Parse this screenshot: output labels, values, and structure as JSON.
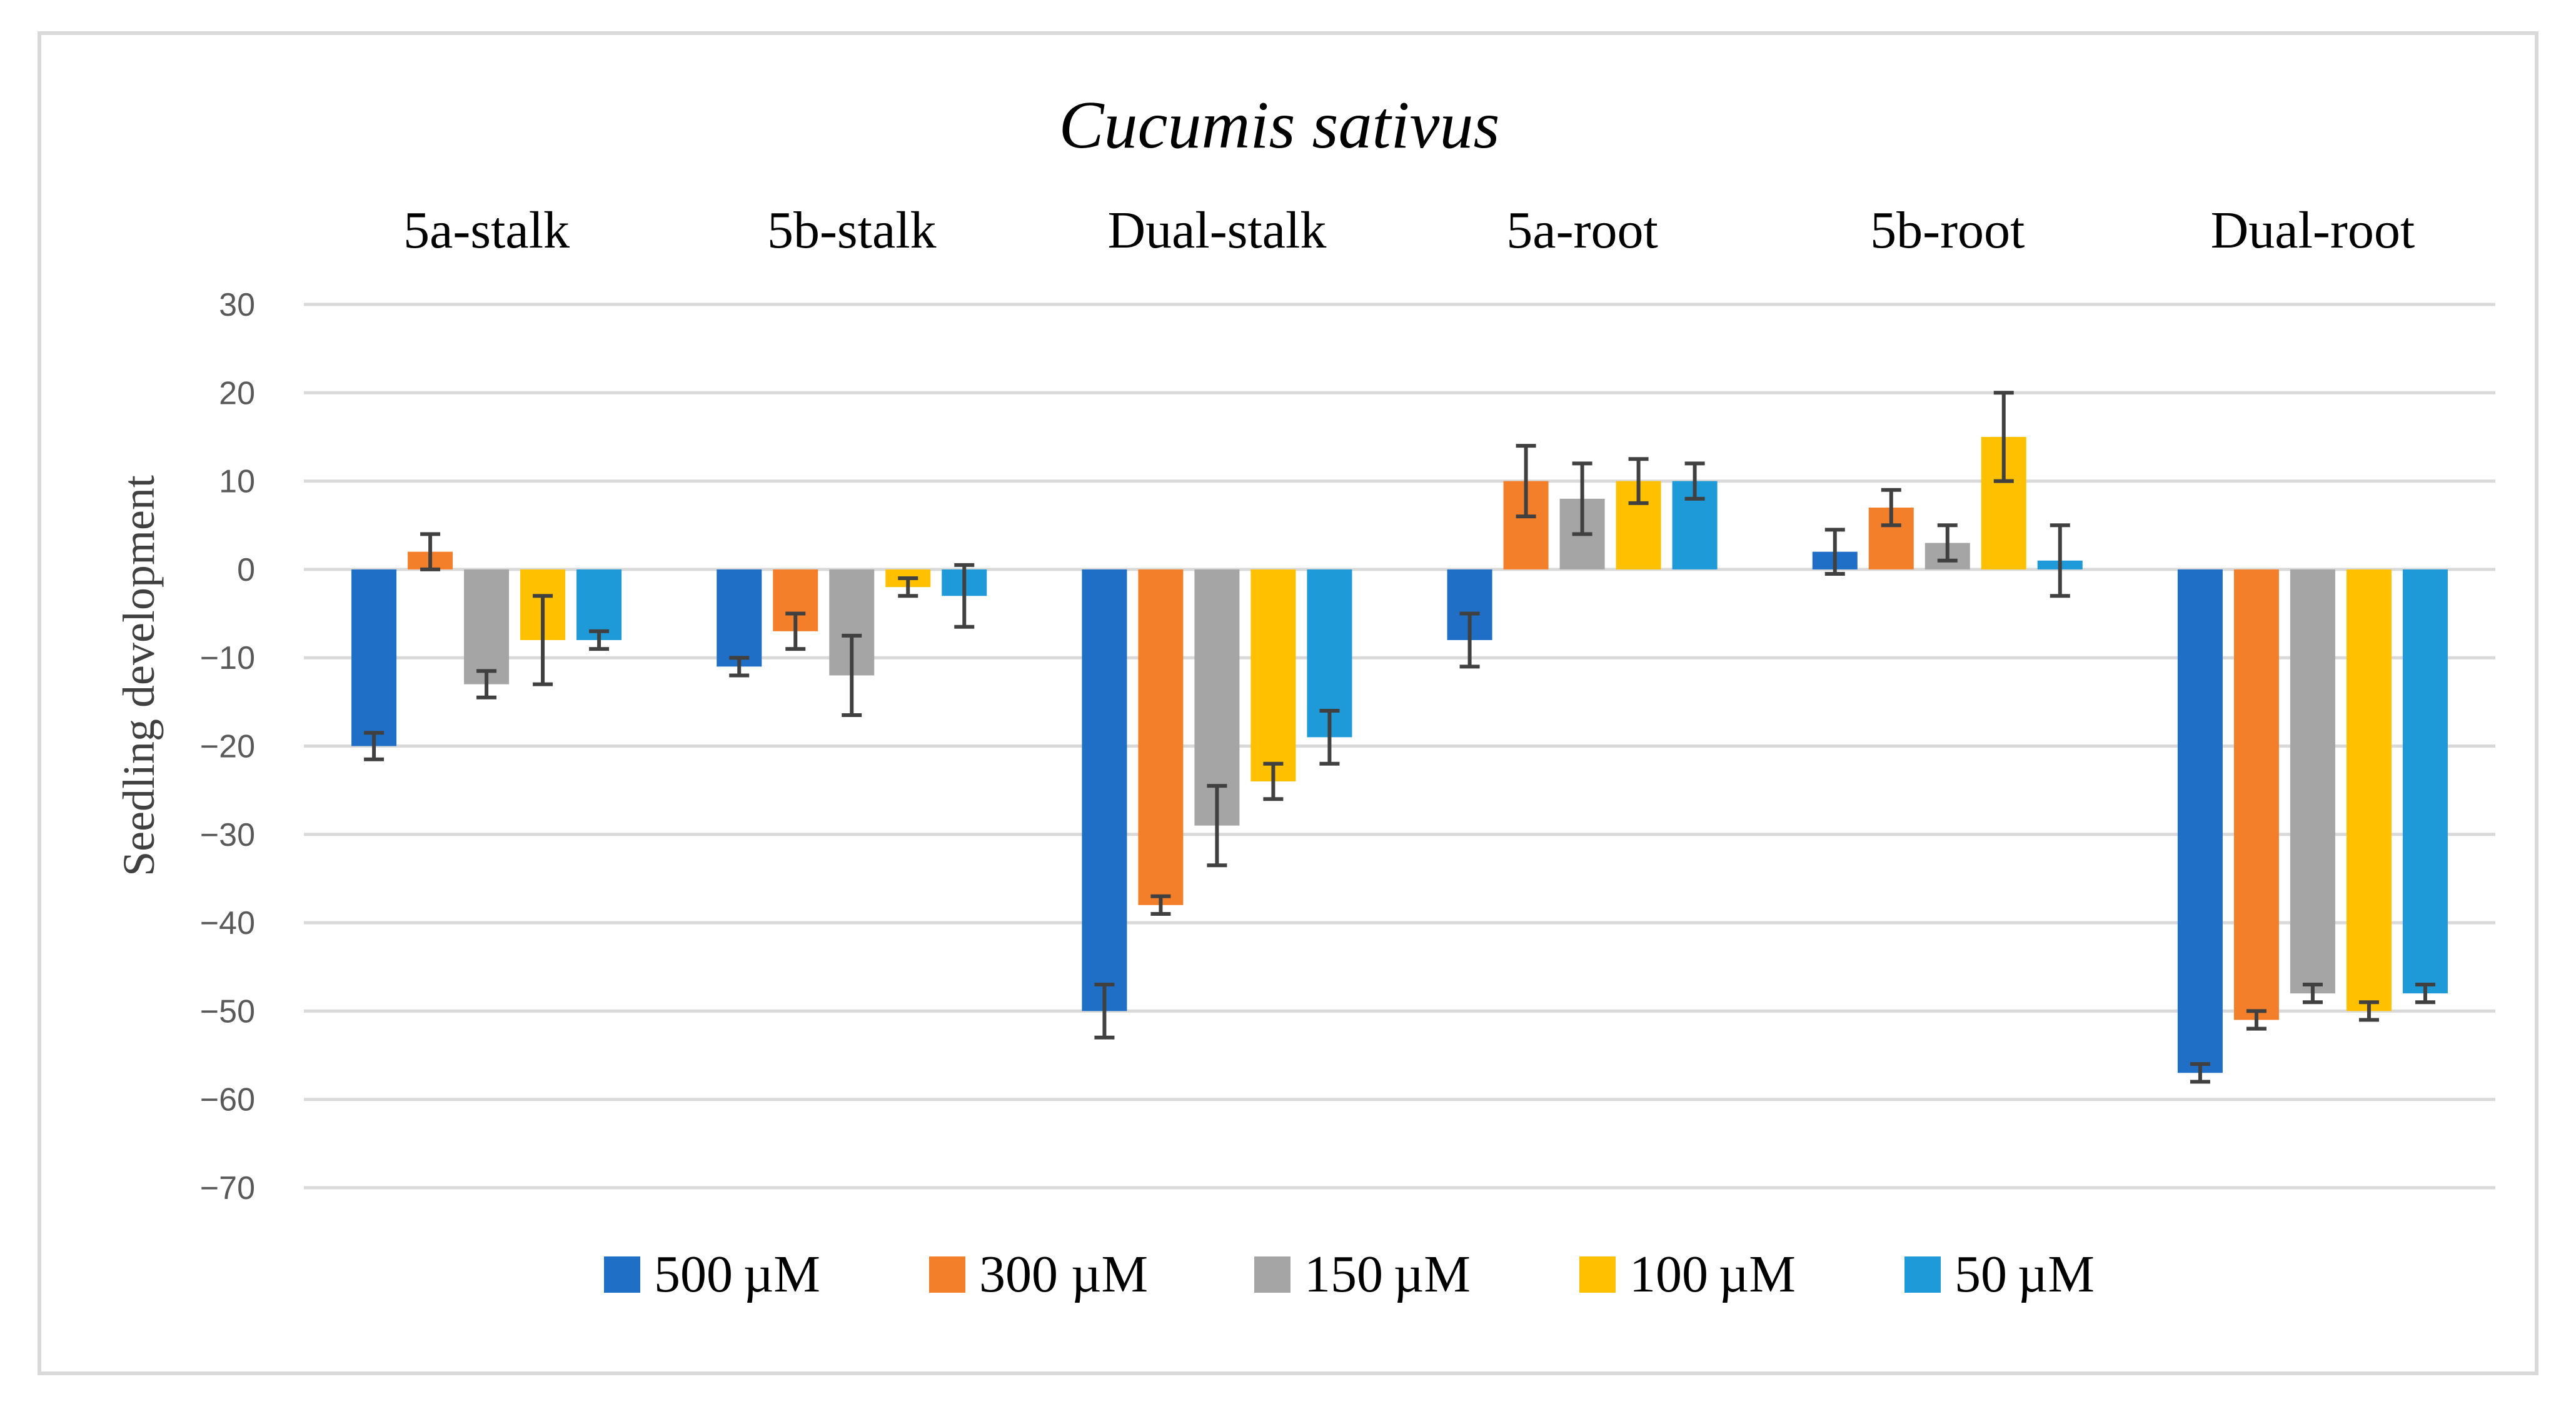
{
  "chart_data": {
    "type": "bar",
    "title": "Cucumis sativus",
    "xlabel": "",
    "ylabel": "Seedling development",
    "ylim": [
      -70,
      30
    ],
    "yticks": [
      30,
      20,
      10,
      0,
      -10,
      -20,
      -30,
      -40,
      -50,
      -60,
      -70
    ],
    "grid": true,
    "legend_position": "bottom",
    "categories": [
      "5a-stalk",
      "5b-stalk",
      "Dual-stalk",
      "5a-root",
      "5b-root",
      "Dual-root"
    ],
    "series": [
      {
        "name": "500 µM",
        "color": "#1f6fc6",
        "values": [
          -20,
          -11,
          -50,
          -8,
          2,
          -57
        ],
        "errors": [
          1.5,
          1.0,
          3.0,
          3.0,
          2.5,
          1.0
        ]
      },
      {
        "name": "300 µM",
        "color": "#f47f2a",
        "values": [
          2,
          -7,
          -38,
          10,
          7,
          -51
        ],
        "errors": [
          2.0,
          2.0,
          1.0,
          4.0,
          2.0,
          1.0
        ]
      },
      {
        "name": "150 µM",
        "color": "#a5a5a5",
        "values": [
          -13,
          -12,
          -29,
          8,
          3,
          -48
        ],
        "errors": [
          1.5,
          4.5,
          4.5,
          4.0,
          2.0,
          1.0
        ]
      },
      {
        "name": "100 µM",
        "color": "#ffc000",
        "values": [
          -8,
          -2,
          -24,
          10,
          15,
          -50
        ],
        "errors": [
          5.0,
          1.0,
          2.0,
          2.5,
          5.0,
          1.0
        ]
      },
      {
        "name": "50 µM",
        "color": "#1f9ad8",
        "values": [
          -8,
          -3,
          -19,
          10,
          1,
          -48
        ],
        "errors": [
          1.0,
          3.5,
          3.0,
          2.0,
          4.0,
          1.0
        ]
      }
    ]
  }
}
